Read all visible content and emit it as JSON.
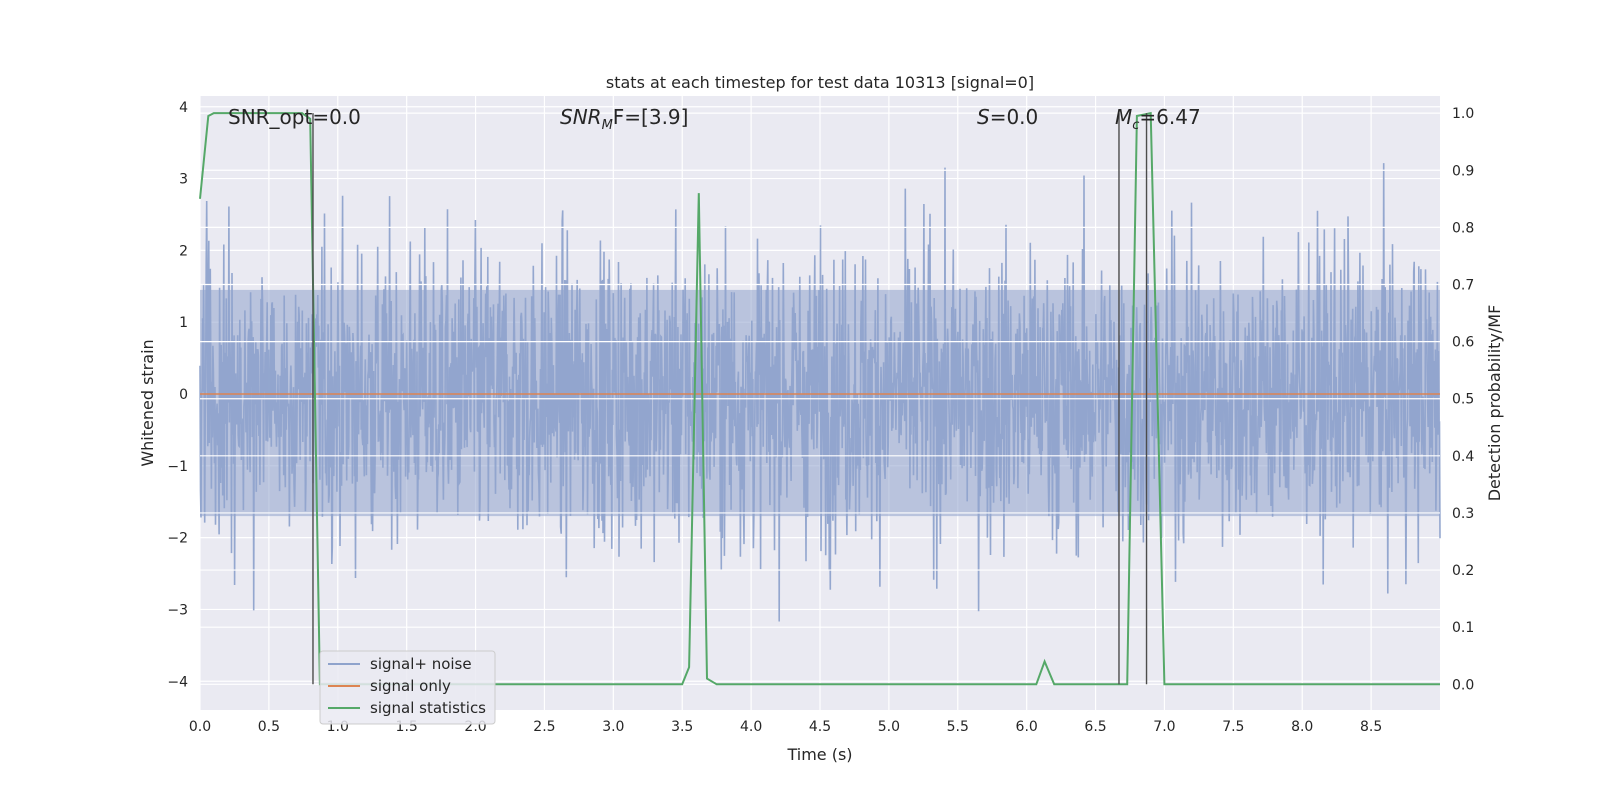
{
  "chart_data": {
    "type": "line",
    "title": "stats at each timestep for test data 10313 [signal=0]",
    "xlabel": "Time (s)",
    "ylabel": "Whitened strain",
    "y2label": "Detection probability/MF",
    "xlim": [
      0.0,
      9.0
    ],
    "ylim": [
      -4.4,
      4.15
    ],
    "y2lim": [
      -0.045,
      1.03
    ],
    "x_ticks": [
      0.0,
      0.5,
      1.0,
      1.5,
      2.0,
      2.5,
      3.0,
      3.5,
      4.0,
      4.5,
      5.0,
      5.5,
      6.0,
      6.5,
      7.0,
      7.5,
      8.0,
      8.5
    ],
    "x_tick_labels": [
      "0.0",
      "0.5",
      "1.0",
      "1.5",
      "2.0",
      "2.5",
      "3.0",
      "3.5",
      "4.0",
      "4.5",
      "5.0",
      "5.5",
      "6.0",
      "6.5",
      "7.0",
      "7.5",
      "8.0",
      "8.5"
    ],
    "y_ticks": [
      4,
      3,
      2,
      1,
      0,
      -1,
      -2,
      -3,
      -4
    ],
    "y_tick_labels": [
      "4",
      "3",
      "2",
      "1",
      "0",
      "−1",
      "−2",
      "−3",
      "−4"
    ],
    "y2_ticks": [
      1.0,
      0.9,
      0.8,
      0.7,
      0.6,
      0.5,
      0.4,
      0.3,
      0.2,
      0.1,
      0.0
    ],
    "y2_tick_labels": [
      "1.0",
      "0.9",
      "0.8",
      "0.7",
      "0.6",
      "0.5",
      "0.4",
      "0.3",
      "0.2",
      "0.1",
      "0.0"
    ],
    "grid": true,
    "legend_position": "lower-left",
    "series": [
      {
        "name": "signal+ noise",
        "axis": "left",
        "color": "#8fa3cc",
        "kind": "noise",
        "envelope": {
          "typical_peak_max": 3.0,
          "typical_peak_min": -3.0,
          "dense_band": [
            -1.7,
            1.45
          ]
        }
      },
      {
        "name": "signal only",
        "axis": "left",
        "color": "#dd8452",
        "x": [
          0.0,
          9.0
        ],
        "y": [
          0.0,
          0.0
        ]
      },
      {
        "name": "signal statistics",
        "axis": "right",
        "color": "#55a868",
        "x": [
          0.0,
          0.06,
          0.1,
          0.5,
          0.74,
          0.8,
          0.87,
          0.95,
          1.0,
          3.45,
          3.5,
          3.55,
          3.62,
          3.68,
          3.75,
          3.8,
          6.0,
          6.07,
          6.13,
          6.2,
          6.67,
          6.73,
          6.8,
          6.9,
          7.0,
          7.1,
          8.0,
          8.5,
          9.0
        ],
        "y": [
          0.85,
          0.995,
          1.0,
          1.0,
          1.0,
          0.99,
          0.0,
          0.0,
          0.0,
          0.0,
          0.0,
          0.03,
          0.86,
          0.01,
          0.0,
          0.0,
          0.0,
          0.0,
          0.04,
          0.0,
          0.0,
          0.0,
          0.995,
          1.0,
          0.0,
          0.0,
          0.0,
          0.0,
          0.0
        ]
      }
    ],
    "vertical_lines": [
      0.82,
      6.67,
      6.87
    ],
    "annotations": [
      {
        "key": "snr_opt",
        "x": 0.2,
        "y": 3.85,
        "text": "SNR_opt=0.0"
      },
      {
        "key": "snr_mf",
        "x": 2.6,
        "y": 3.85,
        "text": "SNRMF=[3.9]"
      },
      {
        "key": "s",
        "x": 5.6,
        "y": 3.85,
        "text": "S=0.0"
      },
      {
        "key": "mc",
        "x": 6.6,
        "y": 3.85,
        "text": "Mc=6.47"
      }
    ]
  },
  "labels": {
    "snr_opt": "SNR_opt=0.0",
    "snr_mf_base": "SNR",
    "snr_mf_sub": "M",
    "snr_mf_rest": "F=[3.9]",
    "s_sym": "S",
    "s_rest": "=0.0",
    "mc_base": "M",
    "mc_sub": "c",
    "mc_rest": "=6.47"
  }
}
